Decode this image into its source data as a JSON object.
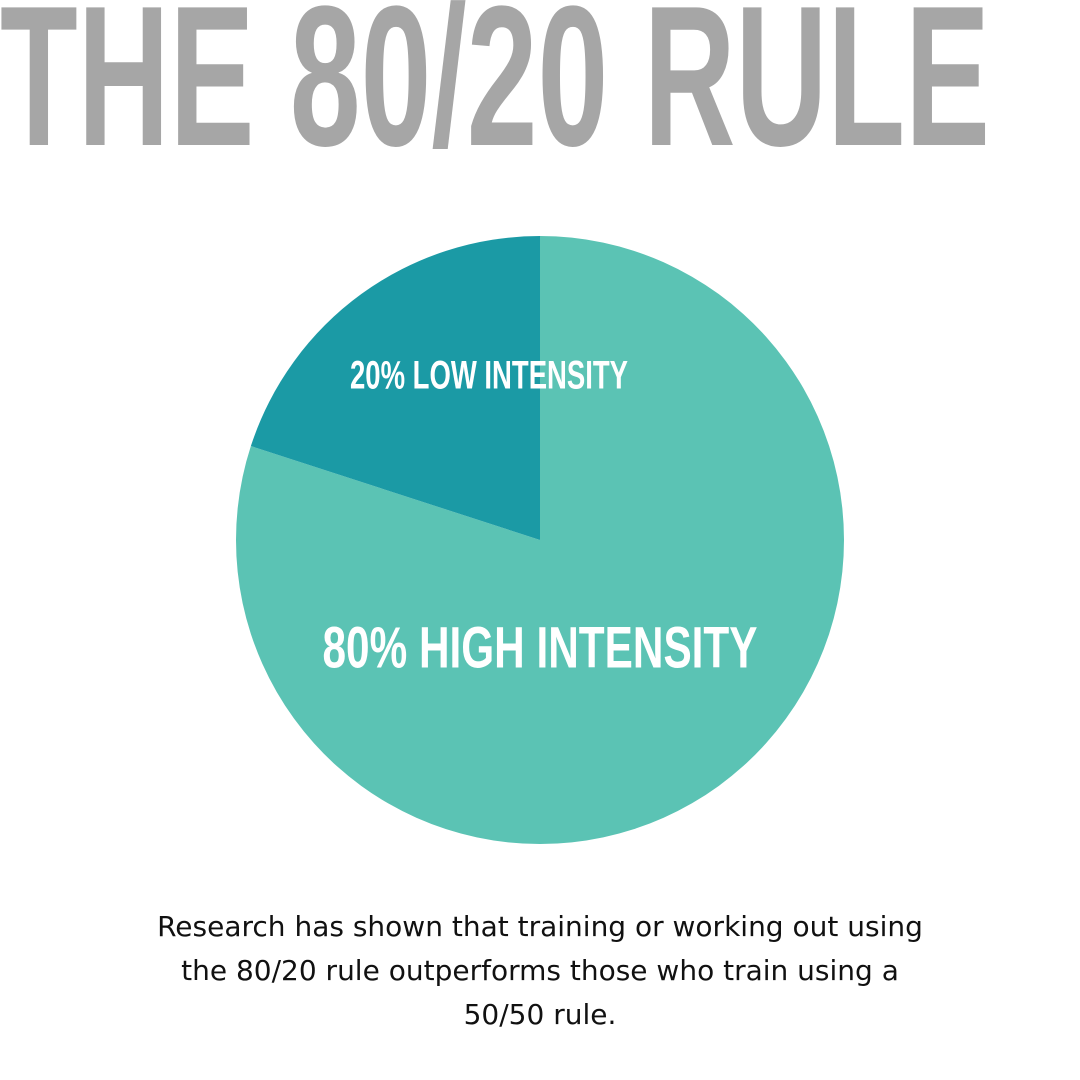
{
  "chart_data": {
    "type": "pie",
    "title": "THE 80/20 RULE",
    "categories": [
      "80% HIGH INTENSITY",
      "20% LOW INTENSITY"
    ],
    "values": [
      80,
      20
    ],
    "colors": [
      "#5bc3b4",
      "#1b9aa5"
    ],
    "caption": "Research has shown that training or working out using the 80/20 rule outperforms those who train using a 50/50 rule."
  }
}
